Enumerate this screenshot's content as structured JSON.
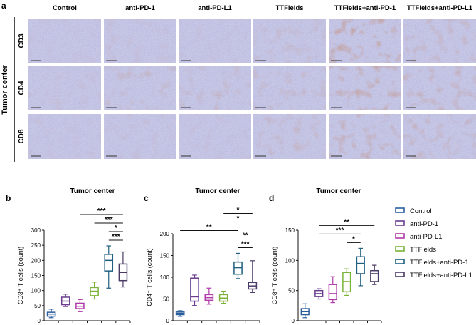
{
  "panels": {
    "a": {
      "letter": "a",
      "columns": [
        "Control",
        "anti-PD-1",
        "anti-PD-L1",
        "TTFields",
        "TTFields+anti-PD-1",
        "TTFields+anti-PD-L1"
      ],
      "rows": [
        "CD3",
        "CD4",
        "CD8"
      ],
      "side_label": "Tumor center"
    }
  },
  "colors": {
    "Control": "#2a5d9c",
    "anti-PD-1": "#6a3d8f",
    "anti-PD-L1": "#b03aa8",
    "TTFields": "#7bb33a",
    "TTFields+anti-PD-1": "#1f5f80",
    "TTFields+anti-PD-L1": "#4a3a66",
    "tissue_base": "#c9c9e6",
    "tissue_stain": "#8a4a3a"
  },
  "legend": {
    "entries": [
      "Control",
      "anti-PD-1",
      "anti-PD-L1",
      "TTFields",
      "TTFields+anti-PD-1",
      "TTFields+anti-PD-L1"
    ]
  },
  "chart_data": [
    {
      "panel": "b",
      "type": "box",
      "title": "Tumor center",
      "ylabel": "CD3⁺ T cells (count)",
      "ylim": [
        0,
        300
      ],
      "yticks": [
        0,
        50,
        100,
        150,
        200,
        250,
        300
      ],
      "categories": [
        "Control",
        "anti-PD-1",
        "anti-PD-L1",
        "TTFields",
        "TTFields+anti-PD-1",
        "TTFields+anti-PD-L1"
      ],
      "boxes": [
        {
          "min": 10,
          "q1": 15,
          "median": 22,
          "q3": 28,
          "max": 38
        },
        {
          "min": 47,
          "q1": 53,
          "median": 65,
          "q3": 78,
          "max": 88
        },
        {
          "min": 30,
          "q1": 40,
          "median": 48,
          "q3": 58,
          "max": 70
        },
        {
          "min": 72,
          "q1": 83,
          "median": 98,
          "q3": 110,
          "max": 128
        },
        {
          "min": 108,
          "q1": 165,
          "median": 200,
          "q3": 220,
          "max": 248
        },
        {
          "min": 112,
          "q1": 133,
          "median": 160,
          "q3": 188,
          "max": 228
        }
      ],
      "significance": [
        {
          "from": 4,
          "to": 5,
          "label": "***"
        },
        {
          "from": 4,
          "to": 5,
          "label": "*"
        },
        {
          "from": 3,
          "to": 5,
          "label": "***"
        },
        {
          "from": 2,
          "to": 5,
          "label": "***"
        }
      ]
    },
    {
      "panel": "c",
      "type": "box",
      "title": "Tumor center",
      "ylabel": "CD4⁺ T cells (count)",
      "ylim": [
        0,
        200
      ],
      "yticks": [
        0,
        50,
        100,
        150,
        200
      ],
      "categories": [
        "Control",
        "anti-PD-1",
        "anti-PD-L1",
        "TTFields",
        "TTFields+anti-PD-1",
        "TTFields+anti-PD-L1"
      ],
      "boxes": [
        {
          "min": 10,
          "q1": 14,
          "median": 17,
          "q3": 20,
          "max": 23
        },
        {
          "min": 35,
          "q1": 45,
          "median": 55,
          "q3": 98,
          "max": 105
        },
        {
          "min": 38,
          "q1": 47,
          "median": 53,
          "q3": 60,
          "max": 75
        },
        {
          "min": 40,
          "q1": 45,
          "median": 52,
          "q3": 60,
          "max": 68
        },
        {
          "min": 97,
          "q1": 107,
          "median": 122,
          "q3": 135,
          "max": 155
        },
        {
          "min": 65,
          "q1": 73,
          "median": 80,
          "q3": 88,
          "max": 138
        }
      ],
      "significance": [
        {
          "from": 4,
          "to": 5,
          "label": "***"
        },
        {
          "from": 4,
          "to": 5,
          "label": "**"
        },
        {
          "from": 0,
          "to": 4,
          "label": "**"
        },
        {
          "from": 3,
          "to": 5,
          "label": "*"
        },
        {
          "from": 3,
          "to": 5,
          "label": "*"
        }
      ]
    },
    {
      "panel": "d",
      "type": "box",
      "title": "Tumor center",
      "ylabel": "CD8⁺ T cells (count)",
      "ylim": [
        0,
        150
      ],
      "yticks": [
        0,
        50,
        100,
        150
      ],
      "categories": [
        "Control",
        "anti-PD-1",
        "anti-PD-L1",
        "TTFields",
        "TTFields+anti-PD-1",
        "TTFields+anti-PD-L1"
      ],
      "boxes": [
        {
          "min": 5,
          "q1": 10,
          "median": 15,
          "q3": 20,
          "max": 28
        },
        {
          "min": 36,
          "q1": 40,
          "median": 45,
          "q3": 50,
          "max": 53
        },
        {
          "min": 30,
          "q1": 35,
          "median": 45,
          "q3": 60,
          "max": 73
        },
        {
          "min": 42,
          "q1": 48,
          "median": 65,
          "q3": 80,
          "max": 86
        },
        {
          "min": 58,
          "q1": 78,
          "median": 95,
          "q3": 106,
          "max": 120
        },
        {
          "min": 60,
          "q1": 65,
          "median": 78,
          "q3": 83,
          "max": 92
        }
      ],
      "significance": [
        {
          "from": 3,
          "to": 4,
          "label": "*"
        },
        {
          "from": 1,
          "to": 4,
          "label": "***"
        },
        {
          "from": 1,
          "to": 5,
          "label": "**"
        }
      ]
    }
  ]
}
